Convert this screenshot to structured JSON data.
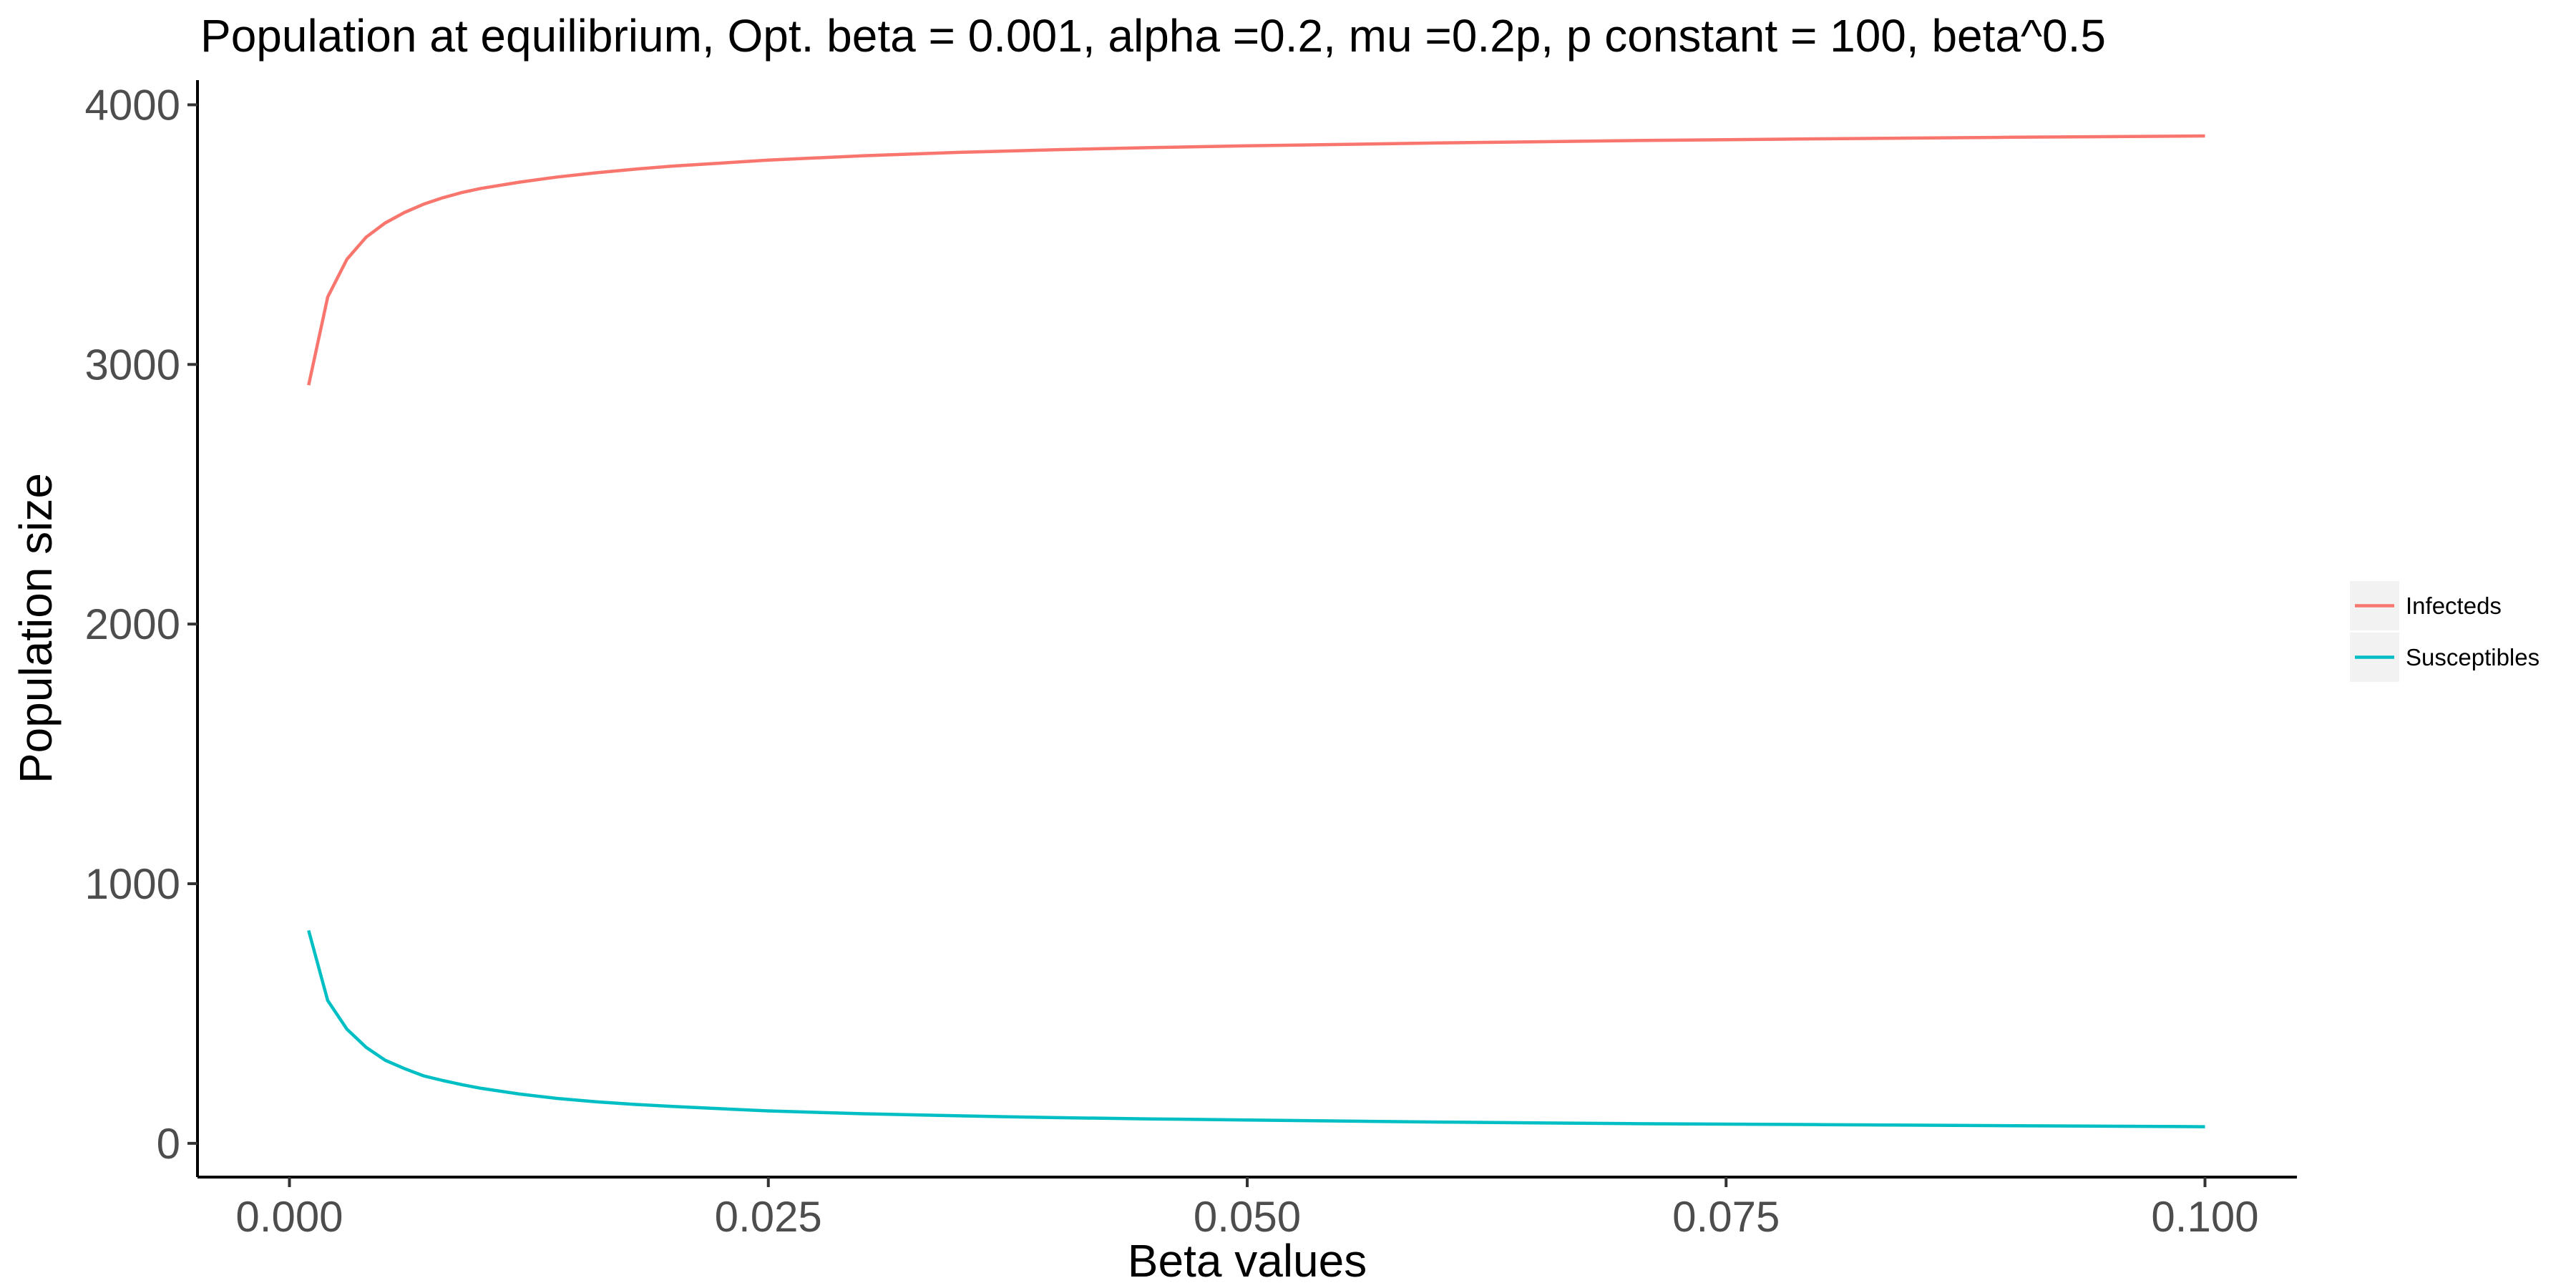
{
  "chart_data": {
    "type": "line",
    "title": "Population at equilibrium, Opt. beta = 0.001, alpha =0.2, mu =0.2p, p constant = 100, beta^0.5",
    "xlabel": "Beta values",
    "ylabel": "Population size",
    "xlim": [
      -0.0048,
      0.1048
    ],
    "ylim": [
      -130,
      4095
    ],
    "x_ticks": [
      0.0,
      0.025,
      0.05,
      0.075,
      0.1
    ],
    "x_tick_labels": [
      "0.000",
      "0.025",
      "0.050",
      "0.075",
      "0.100"
    ],
    "y_ticks": [
      0,
      1000,
      2000,
      3000,
      4000
    ],
    "y_tick_labels": [
      "0",
      "1000",
      "2000",
      "3000",
      "4000"
    ],
    "grid": false,
    "legend_position": "right",
    "series": [
      {
        "name": "Infecteds",
        "color": "#F8766D",
        "x": [
          0.001,
          0.002,
          0.003,
          0.004,
          0.005,
          0.006,
          0.007,
          0.008,
          0.009,
          0.01,
          0.012,
          0.014,
          0.016,
          0.018,
          0.02,
          0.025,
          0.03,
          0.035,
          0.04,
          0.045,
          0.05,
          0.06,
          0.07,
          0.08,
          0.09,
          0.1
        ],
        "values": [
          2920,
          3260,
          3405,
          3490,
          3545,
          3585,
          3617,
          3642,
          3662,
          3678,
          3702,
          3722,
          3738,
          3752,
          3764,
          3787,
          3804,
          3817,
          3827,
          3835,
          3842,
          3853,
          3862,
          3869,
          3875,
          3880
        ]
      },
      {
        "name": "Susceptibles",
        "color": "#00BFC4",
        "x": [
          0.001,
          0.002,
          0.003,
          0.004,
          0.005,
          0.006,
          0.007,
          0.008,
          0.009,
          0.01,
          0.012,
          0.014,
          0.016,
          0.018,
          0.02,
          0.025,
          0.03,
          0.035,
          0.04,
          0.045,
          0.05,
          0.06,
          0.07,
          0.08,
          0.09,
          0.1
        ],
        "values": [
          820,
          550,
          440,
          370,
          320,
          288,
          260,
          242,
          226,
          212,
          190,
          173,
          160,
          150,
          142,
          125,
          114,
          106,
          99,
          94,
          90,
          82,
          76,
          72,
          68,
          64
        ]
      }
    ]
  }
}
